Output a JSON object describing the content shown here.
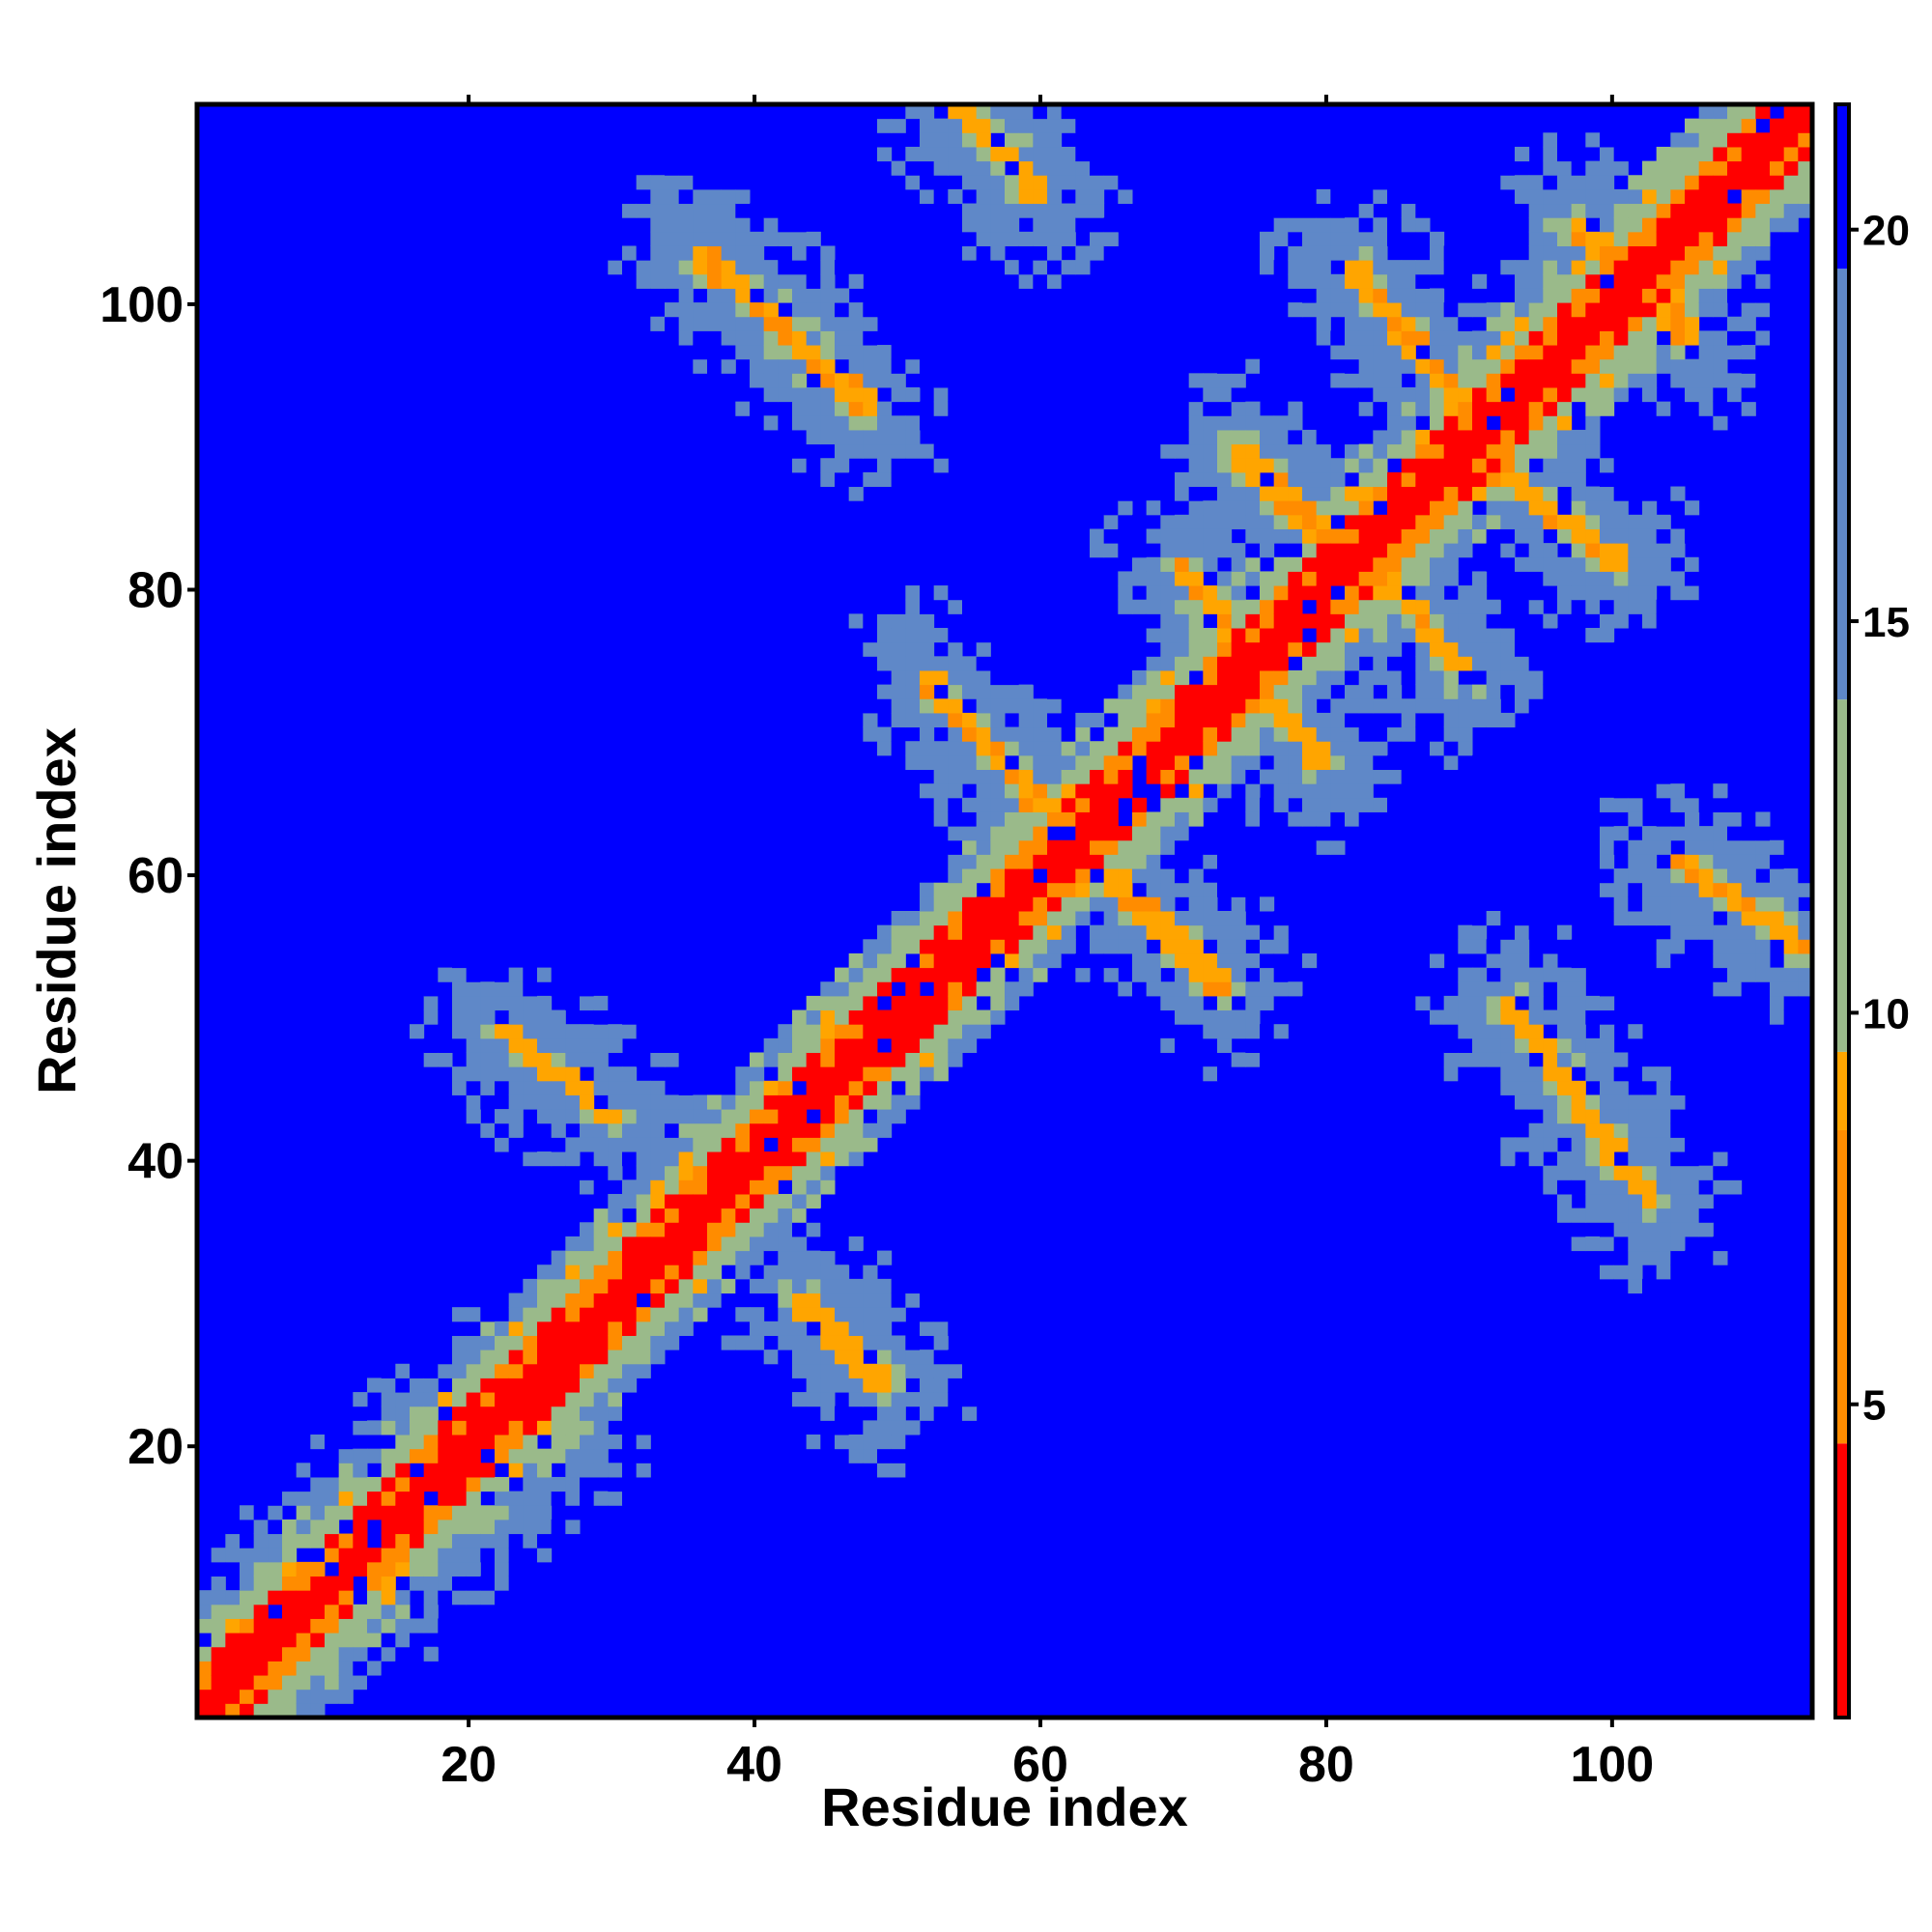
{
  "chart_data": {
    "type": "heatmap",
    "title": "",
    "xlabel": "Residue index",
    "ylabel": "Residue index",
    "xlim": [
      1,
      114
    ],
    "ylim": [
      1,
      114
    ],
    "n_residues": 114,
    "x_ticks": [
      20,
      40,
      60,
      80,
      100
    ],
    "x_tick_labels": [
      "20",
      "40",
      "60",
      "80",
      "100"
    ],
    "y_ticks": [
      20,
      40,
      60,
      80,
      100
    ],
    "y_tick_labels": [
      "20",
      "40",
      "60",
      "80",
      "100"
    ],
    "colorbar": {
      "range": [
        1,
        21.6
      ],
      "ticks": [
        5,
        10,
        15,
        20
      ],
      "tick_labels": [
        "5",
        "10",
        "15",
        "20"
      ],
      "colors": {
        "diagonal_red": "#ff0000",
        "orange": "#ff8c00",
        "amber": "#ffa500",
        "sage_green": "#9aba8a",
        "steel_blue": "#5f88c8",
        "background_blue": "#0000ff"
      }
    },
    "grid": false,
    "legend": "colorbar-right",
    "diagonal_segments": [
      {
        "x": [
          1,
          114
        ],
        "y": [
          1,
          114
        ],
        "value_range": [
          1,
          4
        ]
      }
    ],
    "contact_segments": [
      {
        "x": [
          2,
          22
        ],
        "y": [
          4,
          24
        ],
        "value": 6
      },
      {
        "x": [
          4,
          24
        ],
        "y": [
          2,
          22
        ],
        "value": 10
      },
      {
        "x": [
          8,
          26
        ],
        "y": [
          6,
          20
        ],
        "value": 11
      },
      {
        "x": [
          22,
          30
        ],
        "y": [
          49,
          43
        ],
        "value": 6.5
      },
      {
        "x": [
          43,
          49
        ],
        "y": [
          30,
          24
        ],
        "value": 6.5
      },
      {
        "x": [
          36,
          48
        ],
        "y": [
          104,
          93
        ],
        "value": 6
      },
      {
        "x": [
          54,
          60
        ],
        "y": [
          115,
          108
        ],
        "value": 6
      },
      {
        "x": [
          52,
          60
        ],
        "y": [
          74,
          65
        ],
        "value": 6
      },
      {
        "x": [
          65,
          73
        ],
        "y": [
          60,
          52
        ],
        "value": 6
      },
      {
        "x": [
          82,
          90
        ],
        "y": [
          103,
          93
        ],
        "value": 6
      },
      {
        "x": [
          92,
          101
        ],
        "y": [
          89,
          82
        ],
        "value": 6
      },
      {
        "x": [
          74,
          84
        ],
        "y": [
          90,
          80
        ],
        "value": 6
      },
      {
        "x": [
          70,
          76
        ],
        "y": [
          82,
          74
        ],
        "value": 6
      },
      {
        "x": [
          84,
          90
        ],
        "y": [
          82,
          74
        ],
        "value": 6
      },
      {
        "x": [
          75,
          80
        ],
        "y": [
          74,
          68
        ],
        "value": 6.5
      },
      {
        "x": [
          93,
          103
        ],
        "y": [
          51,
          37
        ],
        "value": 6.5
      },
      {
        "x": [
          105,
          114
        ],
        "y": [
          61,
          55
        ],
        "value": 6
      },
      {
        "x": [
          98,
          106
        ],
        "y": [
          106,
          98
        ],
        "value": 6
      }
    ]
  }
}
